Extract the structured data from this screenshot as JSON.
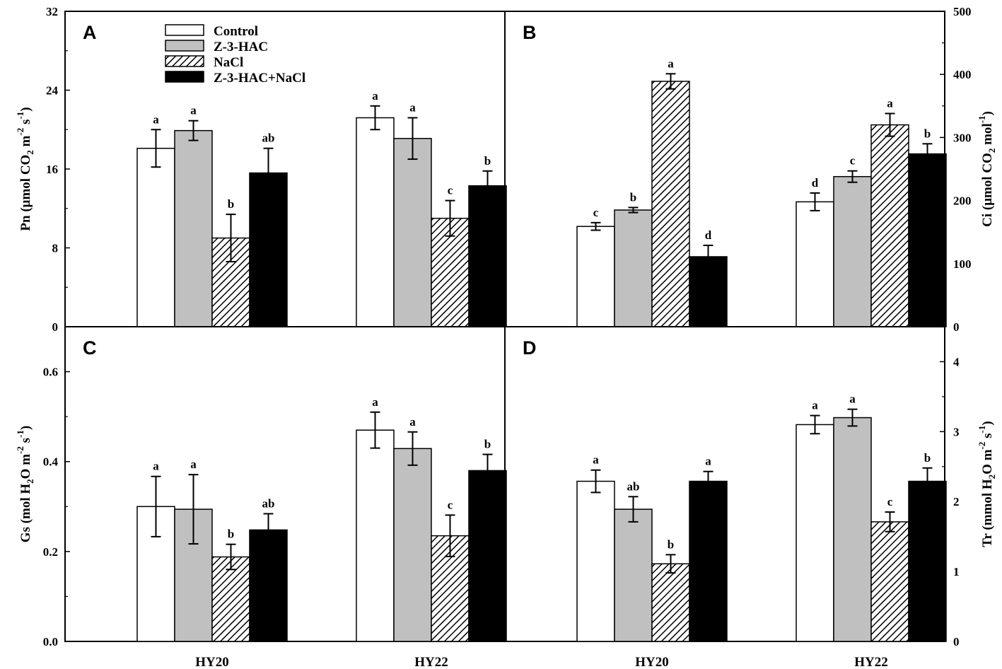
{
  "chart_data": [
    {
      "type": "bar",
      "panel": "A",
      "ylabel": "Pn (μmol CO₂ m⁻² s⁻¹)",
      "ylabel_parts": [
        "Pn (μmol CO",
        "2",
        " m",
        "-2",
        " s",
        "-1",
        ")"
      ],
      "y_axis_side": "left",
      "ylim": [
        0,
        32
      ],
      "yticks": [
        0,
        8,
        16,
        24,
        32
      ],
      "ytick_labels": [
        "0",
        "8",
        "16",
        "24",
        "32"
      ],
      "categories": [
        "HY20",
        "HY22"
      ],
      "series": [
        {
          "name": "Control",
          "values": [
            18.1,
            21.2
          ],
          "errors": [
            1.9,
            1.2
          ],
          "letters": [
            "a",
            "a"
          ]
        },
        {
          "name": "Z-3-HAC",
          "values": [
            19.9,
            19.1
          ],
          "errors": [
            1.0,
            2.1
          ],
          "letters": [
            "a",
            "a"
          ]
        },
        {
          "name": "NaCl",
          "values": [
            9.0,
            11.0
          ],
          "errors": [
            2.4,
            1.8
          ],
          "letters": [
            "b",
            "c"
          ]
        },
        {
          "name": "Z-3-HAC+NaCl",
          "values": [
            15.6,
            14.3
          ],
          "errors": [
            2.5,
            1.5
          ],
          "letters": [
            "ab",
            "b"
          ]
        }
      ]
    },
    {
      "type": "bar",
      "panel": "B",
      "ylabel": "Ci (μmol CO₂ mol⁻¹)",
      "ylabel_parts": [
        "Ci (μmol CO",
        "2",
        " mol",
        "-1",
        ")"
      ],
      "y_axis_side": "right",
      "ylim": [
        0,
        500
      ],
      "yticks": [
        0,
        100,
        200,
        300,
        400,
        500
      ],
      "ytick_labels": [
        "0",
        "100",
        "200",
        "300",
        "400",
        "500"
      ],
      "categories": [
        "HY20",
        "HY22"
      ],
      "series": [
        {
          "name": "Control",
          "values": [
            159,
            198
          ],
          "errors": [
            6,
            14
          ],
          "letters": [
            "c",
            "d"
          ]
        },
        {
          "name": "Z-3-HAC",
          "values": [
            185,
            238
          ],
          "errors": [
            4,
            9
          ],
          "letters": [
            "b",
            "c"
          ]
        },
        {
          "name": "NaCl",
          "values": [
            389,
            320
          ],
          "errors": [
            12,
            18
          ],
          "letters": [
            "a",
            "a"
          ]
        },
        {
          "name": "Z-3-HAC+NaCl",
          "values": [
            111,
            274
          ],
          "errors": [
            18,
            16
          ],
          "letters": [
            "d",
            "b"
          ]
        }
      ]
    },
    {
      "type": "bar",
      "panel": "C",
      "ylabel": "Gs (mol H₂O m⁻² s⁻¹)",
      "ylabel_parts": [
        "Gs (mol H",
        "2",
        "O m",
        "-2",
        " s",
        "-1",
        ")"
      ],
      "y_axis_side": "left",
      "ylim": [
        0,
        0.7
      ],
      "yticks": [
        0,
        0.2,
        0.4,
        0.6
      ],
      "ytick_labels": [
        "0.0",
        "0.2",
        "0.4",
        "0.6"
      ],
      "categories": [
        "HY20",
        "HY22"
      ],
      "xlabel_ticks": [
        "HY20",
        "HY22"
      ],
      "series": [
        {
          "name": "Control",
          "values": [
            0.3,
            0.47
          ],
          "errors": [
            0.067,
            0.04
          ],
          "letters": [
            "a",
            "a"
          ]
        },
        {
          "name": "Z-3-HAC",
          "values": [
            0.294,
            0.429
          ],
          "errors": [
            0.077,
            0.037
          ],
          "letters": [
            "a",
            "a"
          ]
        },
        {
          "name": "NaCl",
          "values": [
            0.188,
            0.235
          ],
          "errors": [
            0.028,
            0.046
          ],
          "letters": [
            "b",
            "c"
          ]
        },
        {
          "name": "Z-3-HAC+NaCl",
          "values": [
            0.248,
            0.38
          ],
          "errors": [
            0.036,
            0.036
          ],
          "letters": [
            "ab",
            "b"
          ]
        }
      ]
    },
    {
      "type": "bar",
      "panel": "D",
      "ylabel": "Tr (mmol H₂O m⁻² s⁻¹)",
      "ylabel_parts": [
        "Tr (mmol H",
        "2",
        "O m",
        "-2",
        " s",
        "-1",
        ")"
      ],
      "y_axis_side": "right",
      "ylim": [
        0,
        4.5
      ],
      "yticks": [
        0,
        1,
        2,
        3,
        4
      ],
      "ytick_labels": [
        "0",
        "1",
        "2",
        "3",
        "4"
      ],
      "categories": [
        "HY20",
        "HY22"
      ],
      "xlabel_ticks": [
        "HY20",
        "HY22"
      ],
      "series": [
        {
          "name": "Control",
          "values": [
            2.29,
            3.1
          ],
          "errors": [
            0.16,
            0.13
          ],
          "letters": [
            "a",
            "a"
          ]
        },
        {
          "name": "Z-3-HAC",
          "values": [
            1.89,
            3.2
          ],
          "errors": [
            0.18,
            0.12
          ],
          "letters": [
            "ab",
            "a"
          ]
        },
        {
          "name": "NaCl",
          "values": [
            1.11,
            1.71
          ],
          "errors": [
            0.13,
            0.14
          ],
          "letters": [
            "b",
            "c"
          ]
        },
        {
          "name": "Z-3-HAC+NaCl",
          "values": [
            2.29,
            2.29
          ],
          "errors": [
            0.14,
            0.19
          ],
          "letters": [
            "a",
            "b"
          ]
        }
      ]
    }
  ],
  "legend": {
    "entries": [
      {
        "label": "Control",
        "style": "white"
      },
      {
        "label": "Z-3-HAC",
        "style": "gray"
      },
      {
        "label": "NaCl",
        "style": "hatched"
      },
      {
        "label": "Z-3-HAC+NaCl",
        "style": "black"
      }
    ]
  },
  "colors": {
    "Control": "#ffffff",
    "Z-3-HAC": "#c0c0c0",
    "NaCl": "hatch",
    "Z-3-HAC+NaCl": "#000000"
  }
}
